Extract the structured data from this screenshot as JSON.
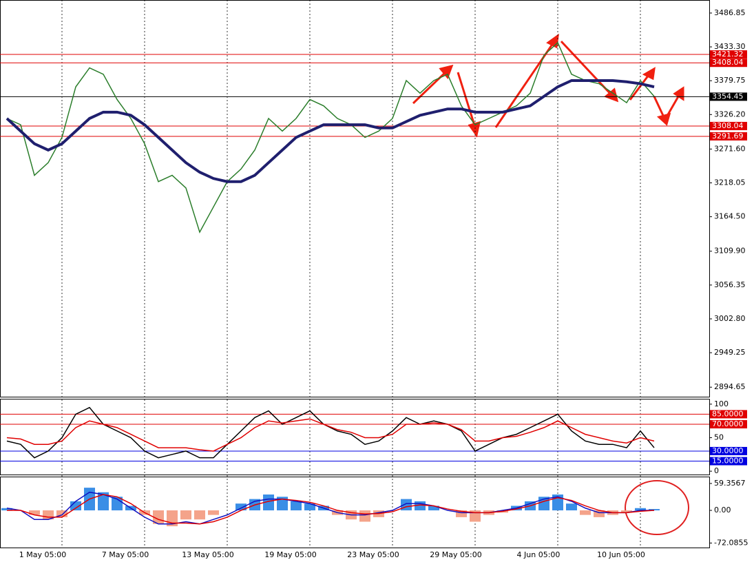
{
  "chart_data": [
    {
      "type": "line",
      "categories": [
        null,
        null,
        null,
        null,
        "1 May 05:00",
        null,
        null,
        null,
        null,
        null,
        "7 May 05:00",
        null,
        null,
        null,
        null,
        null,
        "13 May 05:00",
        null,
        null,
        null,
        null,
        null,
        "19 May 05:00",
        null,
        null,
        null,
        null,
        null,
        "23 May 05:00",
        null,
        null,
        null,
        null,
        null,
        "29 May 05:00",
        null,
        null,
        null,
        null,
        null,
        "4 Jun 05:00",
        null,
        null,
        null,
        null,
        null,
        "10 Jun 05:00",
        null
      ],
      "series": [
        {
          "color": "#2a7d2a",
          "values": [
            3320,
            3310,
            3230,
            3250,
            3290,
            3370,
            3400,
            3390,
            3350,
            3320,
            3280,
            3220,
            3230,
            3210,
            3140,
            3180,
            3220,
            3240,
            3270,
            3320,
            3300,
            3320,
            3350,
            3340,
            3320,
            3310,
            3290,
            3300,
            3320,
            3380,
            3360,
            3380,
            3390,
            3340,
            3310,
            3320,
            3330,
            3340,
            3360,
            3420,
            3440,
            3390,
            3380,
            3375,
            3360,
            3345,
            3380,
            3355
          ]
        },
        {
          "color": "#1f1f6e",
          "values": [
            3320,
            3300,
            3280,
            3270,
            3280,
            3300,
            3320,
            3330,
            3330,
            3325,
            3310,
            3290,
            3270,
            3250,
            3235,
            3225,
            3220,
            3220,
            3230,
            3250,
            3270,
            3290,
            3300,
            3310,
            3310,
            3310,
            3310,
            3305,
            3305,
            3315,
            3325,
            3330,
            3335,
            3335,
            3330,
            3330,
            3330,
            3335,
            3340,
            3355,
            3370,
            3380,
            3380,
            3380,
            3380,
            3378,
            3375,
            3370
          ]
        }
      ],
      "ylim": [
        2879.6,
        3506.4
      ],
      "yticks": [
        {
          "value": 3486.85,
          "label": "3486.85"
        },
        {
          "value": 3433.3,
          "label": "3433.30"
        },
        {
          "value": 3379.75,
          "label": "3379.75"
        },
        {
          "value": 3326.2,
          "label": "3326.20"
        },
        {
          "value": 3271.6,
          "label": "3271.60"
        },
        {
          "value": 3218.05,
          "label": "3218.05"
        },
        {
          "value": 3164.5,
          "label": "3164.50"
        },
        {
          "value": 3109.9,
          "label": "3109.90"
        },
        {
          "value": 3056.35,
          "label": "3056.35"
        },
        {
          "value": 3002.8,
          "label": "3002.80"
        },
        {
          "value": 2949.25,
          "label": "2949.25"
        },
        {
          "value": 2894.65,
          "label": "2894.65"
        }
      ],
      "levels": [
        {
          "value": 3421.32,
          "color": "#e00000"
        },
        {
          "value": 3408.04,
          "color": "#e00000"
        },
        {
          "value": 3354.45,
          "color": "#000000"
        },
        {
          "value": 3308.04,
          "color": "#e00000"
        },
        {
          "value": 3291.69,
          "color": "#e00000"
        }
      ]
    },
    {
      "type": "line",
      "series": [
        {
          "color": "#000000",
          "values": [
            45,
            40,
            20,
            30,
            50,
            85,
            95,
            70,
            60,
            50,
            30,
            20,
            25,
            30,
            20,
            20,
            40,
            60,
            80,
            90,
            70,
            80,
            90,
            70,
            60,
            55,
            40,
            45,
            60,
            80,
            70,
            75,
            70,
            60,
            30,
            40,
            50,
            55,
            65,
            75,
            85,
            60,
            45,
            40,
            40,
            35,
            60,
            35
          ]
        },
        {
          "color": "#e00000",
          "values": [
            50,
            48,
            40,
            40,
            45,
            65,
            75,
            70,
            65,
            55,
            45,
            35,
            35,
            35,
            32,
            30,
            40,
            50,
            65,
            75,
            72,
            75,
            78,
            70,
            62,
            58,
            50,
            50,
            55,
            70,
            70,
            72,
            70,
            62,
            45,
            45,
            50,
            52,
            58,
            65,
            75,
            65,
            55,
            50,
            45,
            42,
            50,
            45
          ]
        }
      ],
      "ylim": [
        -5,
        107
      ],
      "yticks": [
        100,
        50,
        0
      ],
      "levels": [
        {
          "value": 85,
          "label": "85.0000",
          "color": "#e00000"
        },
        {
          "value": 70,
          "label": "70.0000",
          "color": "#e00000"
        },
        {
          "value": 30,
          "label": "30.0000",
          "color": "#0000e0"
        },
        {
          "value": 15,
          "label": "15.0000",
          "color": "#0000e0"
        }
      ]
    },
    {
      "type": "bar",
      "values": [
        5,
        0,
        -10,
        -20,
        -15,
        20,
        50,
        40,
        30,
        10,
        -10,
        -30,
        -35,
        -20,
        -20,
        -10,
        0,
        15,
        25,
        35,
        30,
        20,
        15,
        10,
        -10,
        -20,
        -25,
        -15,
        0,
        25,
        20,
        10,
        0,
        -15,
        -25,
        -10,
        -5,
        10,
        20,
        30,
        35,
        15,
        -10,
        -15,
        -10,
        -5,
        5,
        3
      ],
      "colors": [
        "#3a8ee6",
        "#f4a38a"
      ],
      "series": [
        {
          "color": "#1010c0",
          "values": [
            5,
            0,
            -20,
            -20,
            -10,
            20,
            40,
            35,
            25,
            5,
            -15,
            -30,
            -30,
            -25,
            -30,
            -20,
            -10,
            5,
            20,
            25,
            25,
            20,
            15,
            5,
            -5,
            -10,
            -10,
            -5,
            0,
            15,
            15,
            10,
            0,
            -5,
            -5,
            -5,
            0,
            5,
            15,
            25,
            30,
            20,
            5,
            -5,
            -5,
            -5,
            0,
            0
          ]
        },
        {
          "color": "#e00000",
          "values": [
            0,
            0,
            -10,
            -15,
            -15,
            5,
            25,
            35,
            30,
            15,
            -5,
            -20,
            -28,
            -28,
            -30,
            -25,
            -15,
            0,
            12,
            20,
            25,
            22,
            18,
            10,
            0,
            -5,
            -8,
            -7,
            -3,
            8,
            12,
            10,
            3,
            -2,
            -5,
            -5,
            -2,
            3,
            10,
            20,
            28,
            22,
            10,
            0,
            -5,
            -5,
            -2,
            0
          ]
        }
      ],
      "ylim": [
        -82,
        73
      ],
      "yticks": [
        59.3567,
        {
          "value": 0,
          "label": "0.00"
        },
        -72.0855
      ]
    }
  ]
}
